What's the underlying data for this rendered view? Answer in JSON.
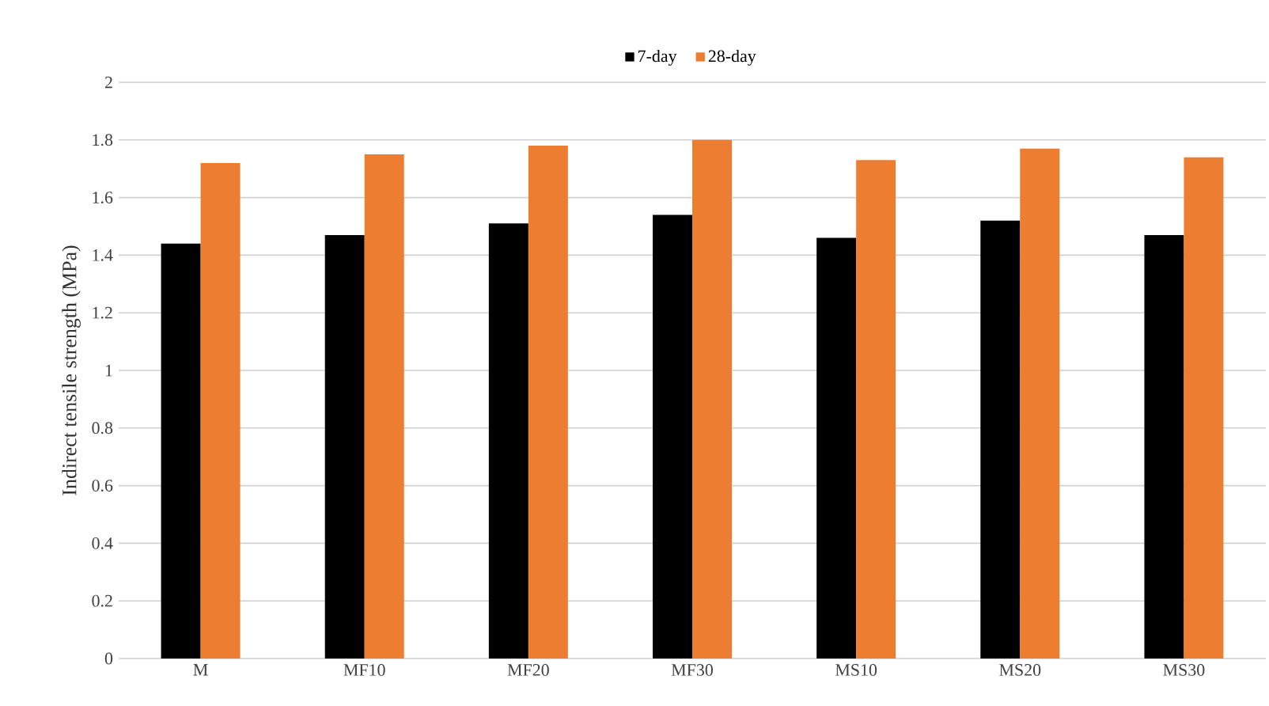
{
  "chart_data": {
    "type": "bar",
    "ylabel": "Indirect tensile strength (MPa)",
    "categories": [
      "M",
      "MF10",
      "MF20",
      "MF30",
      "MS10",
      "MS20",
      "MS30"
    ],
    "series": [
      {
        "name": "7-day",
        "color": "#000000",
        "values": [
          1.44,
          1.47,
          1.51,
          1.54,
          1.46,
          1.52,
          1.47
        ]
      },
      {
        "name": "28-day",
        "color": "#ed7d31",
        "values": [
          1.72,
          1.75,
          1.78,
          1.8,
          1.73,
          1.77,
          1.74
        ]
      }
    ],
    "ylim": [
      0,
      2
    ],
    "yticks": [
      0,
      0.2,
      0.4,
      0.6,
      0.8,
      1,
      1.2,
      1.4,
      1.6,
      1.8,
      2
    ],
    "grid": "y",
    "legend": "top"
  }
}
